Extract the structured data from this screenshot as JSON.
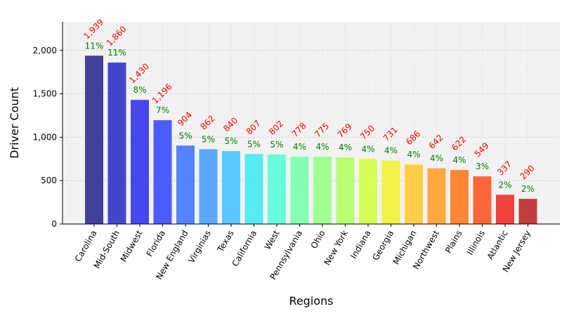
{
  "chart_data": {
    "type": "bar",
    "title": "",
    "xlabel": "Regions",
    "ylabel": "Driver Count",
    "ylim": [
      0,
      2330
    ],
    "yticks": [
      0,
      500,
      1000,
      1500,
      2000
    ],
    "ytick_labels": [
      "0",
      "500",
      "1,000",
      "1,500",
      "2,000"
    ],
    "grid": true,
    "categories": [
      "Carolina",
      "Mid-South",
      "Midwest",
      "Florida",
      "New England",
      "Virginias",
      "Texas",
      "California",
      "West",
      "Pennsylvania",
      "Ohio",
      "New York",
      "Indiana",
      "Georgia",
      "Michigan",
      "Northwest",
      "Plains",
      "Illinois",
      "Atlantic",
      "New Jersey"
    ],
    "values": [
      1939,
      1860,
      1430,
      1196,
      904,
      862,
      840,
      807,
      802,
      778,
      775,
      769,
      750,
      731,
      686,
      642,
      622,
      549,
      337,
      290
    ],
    "value_labels": [
      "1,939",
      "1,860",
      "1,430",
      "1,196",
      "904",
      "862",
      "840",
      "807",
      "802",
      "778",
      "775",
      "769",
      "750",
      "731",
      "686",
      "642",
      "622",
      "549",
      "337",
      "290"
    ],
    "percent_labels": [
      "11%",
      "11%",
      "8%",
      "7%",
      "5%",
      "5%",
      "5%",
      "5%",
      "5%",
      "4%",
      "4%",
      "4%",
      "4%",
      "4%",
      "4%",
      "4%",
      "4%",
      "3%",
      "2%",
      "2%"
    ],
    "colors": [
      "#2e2e8f",
      "#3232c8",
      "#3434ef",
      "#3a4cff",
      "#4477ff",
      "#4aa0ff",
      "#49c3ff",
      "#45e9f4",
      "#5affd8",
      "#7bffad",
      "#97ff8a",
      "#b2ff66",
      "#d2ff46",
      "#f3f135",
      "#ffcb33",
      "#ffa02c",
      "#ff7a20",
      "#ff5626",
      "#f22f2b",
      "#bb2a2a"
    ],
    "value_label_color": "#ff0000",
    "percent_label_color": "#008000",
    "plot_background": "#f2f2f2"
  }
}
